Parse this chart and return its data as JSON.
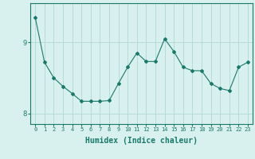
{
  "x": [
    0,
    1,
    2,
    3,
    4,
    5,
    6,
    7,
    8,
    9,
    10,
    11,
    12,
    13,
    14,
    15,
    16,
    17,
    18,
    19,
    20,
    21,
    22,
    23
  ],
  "y": [
    9.35,
    8.72,
    8.5,
    8.38,
    8.28,
    8.17,
    8.17,
    8.17,
    8.18,
    8.42,
    8.65,
    8.85,
    8.73,
    8.73,
    9.05,
    8.87,
    8.65,
    8.6,
    8.6,
    8.42,
    8.35,
    8.32,
    8.65,
    8.72
  ],
  "line_color": "#1a7a6a",
  "marker": "D",
  "marker_size": 2,
  "bg_color": "#d8f0ee",
  "grid_color": "#b0d8d4",
  "xlabel": "Humidex (Indice chaleur)",
  "xlabel_fontsize": 7,
  "tick_fontsize": 6,
  "yticks": [
    8,
    9
  ],
  "ylim": [
    7.85,
    9.55
  ],
  "xlim": [
    -0.5,
    23.5
  ],
  "xtick_labels": [
    "0",
    "1",
    "2",
    "3",
    "4",
    "5",
    "6",
    "7",
    "8",
    "9",
    "10",
    "11",
    "12",
    "13",
    "14",
    "15",
    "16",
    "17",
    "18",
    "19",
    "20",
    "21",
    "22",
    "23"
  ]
}
